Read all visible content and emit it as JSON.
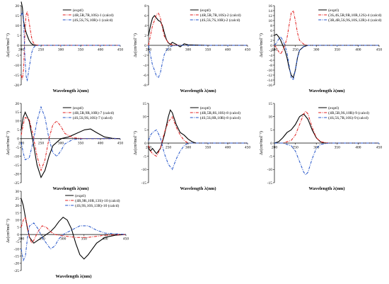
{
  "chart_data": [
    {
      "type": "line",
      "xlabel": "Wavelength λ(nm)",
      "ylabel": "Δε(cm²mol⁻¹)",
      "xlim": [
        200,
        450
      ],
      "ylim": [
        -20,
        20
      ],
      "xticks": [
        200,
        250,
        300,
        350,
        400,
        450
      ],
      "yticks": [
        -20,
        -15,
        -10,
        -5,
        0,
        5,
        10,
        15,
        20
      ],
      "legend": "top-right",
      "series": [
        {
          "name": "(exptl)",
          "color": "#000000",
          "dash": "solid",
          "x": [
            200,
            203,
            206,
            210,
            215,
            220,
            225,
            230,
            240,
            260,
            300,
            350,
            400,
            450
          ],
          "y": [
            22,
            19,
            12,
            8,
            5,
            2.5,
            1,
            0.3,
            0,
            0,
            0,
            0,
            0,
            0
          ]
        },
        {
          "name": "(4R,5R,7R,10S)-1 (calcd)",
          "color": "#e01b1b",
          "dash": "dashdot",
          "x": [
            200,
            203,
            206,
            209,
            212,
            215,
            218,
            222,
            226,
            230,
            235,
            245,
            260,
            300,
            350,
            400,
            450
          ],
          "y": [
            -15,
            -17,
            -12,
            4,
            15,
            17,
            14,
            9,
            4,
            1.5,
            0.3,
            0,
            0,
            0,
            0,
            0,
            0
          ]
        },
        {
          "name": "(4S,5S,7S,10R)-1 (calcd)",
          "color": "#2152c8",
          "dash": "dashdot",
          "x": [
            200,
            203,
            206,
            209,
            212,
            215,
            218,
            222,
            226,
            230,
            235,
            245,
            260,
            300,
            350,
            400,
            450
          ],
          "y": [
            15,
            17,
            12,
            -4,
            -15,
            -18,
            -14,
            -9,
            -4,
            -1.5,
            -0.3,
            0,
            0,
            0,
            0,
            0,
            0
          ]
        }
      ]
    },
    {
      "type": "line",
      "xlabel": "Wavelength λ(nm)",
      "ylabel": "Δε(cm²mol⁻¹)",
      "xlim": [
        200,
        450
      ],
      "ylim": [
        -8,
        8
      ],
      "xticks": [
        200,
        250,
        300,
        350,
        400,
        450
      ],
      "yticks": [
        -8,
        -6,
        -4,
        -2,
        0,
        2,
        4,
        6,
        8
      ],
      "legend": "top-right",
      "series": [
        {
          "name": "(exptl)",
          "color": "#000000",
          "dash": "solid",
          "x": [
            200,
            205,
            210,
            215,
            220,
            225,
            230,
            235,
            240,
            245,
            250,
            255,
            260,
            270,
            280,
            290,
            300,
            350,
            400,
            450
          ],
          "y": [
            2,
            4,
            5.5,
            6,
            5.5,
            5,
            4.8,
            4,
            2.5,
            1.2,
            0.5,
            0.2,
            0.6,
            0.2,
            -0.3,
            0.3,
            0.1,
            0,
            0,
            0
          ]
        },
        {
          "name": "(4R,5R,7R,10S)-2 (calcd)",
          "color": "#e01b1b",
          "dash": "dashdot",
          "x": [
            200,
            205,
            210,
            215,
            220,
            225,
            230,
            235,
            240,
            250,
            260,
            280,
            300,
            350,
            400,
            450
          ],
          "y": [
            0,
            2,
            4,
            5,
            6.2,
            6.5,
            5.5,
            3.5,
            1.8,
            0.5,
            0.1,
            0,
            0,
            0,
            0,
            0
          ]
        },
        {
          "name": "(4S,5S,7S,10R)-2 (calcd)",
          "color": "#2152c8",
          "dash": "dashdot",
          "x": [
            200,
            205,
            210,
            215,
            220,
            225,
            230,
            235,
            240,
            250,
            260,
            280,
            300,
            350,
            400,
            450
          ],
          "y": [
            0,
            -2,
            -4,
            -5,
            -6.2,
            -6.5,
            -5.5,
            -3.5,
            -1.8,
            -0.5,
            -0.1,
            0,
            0,
            0,
            0,
            0
          ]
        }
      ]
    },
    {
      "type": "line",
      "xlabel": "Wavelength λ(nm)",
      "ylabel": "Δε(cm²mol⁻¹)",
      "xlim": [
        200,
        450
      ],
      "ylim": [
        -16,
        16
      ],
      "xticks": [
        200,
        250,
        300,
        350,
        400,
        450
      ],
      "yticks": [
        -16,
        -14,
        -12,
        -10,
        -8,
        -6,
        -4,
        -2,
        0,
        2,
        4,
        6,
        8,
        10,
        12,
        14,
        16
      ],
      "legend": "top-right",
      "series": [
        {
          "name": "(exptl)",
          "color": "#000000",
          "dash": "solid",
          "x": [
            200,
            205,
            210,
            215,
            220,
            225,
            230,
            235,
            240,
            245,
            250,
            255,
            260,
            270,
            280,
            300,
            350,
            400,
            450
          ],
          "y": [
            4,
            4.5,
            3.5,
            2,
            0,
            -2,
            -5,
            -9,
            -12,
            -13,
            -10,
            -5,
            -2,
            -0.5,
            0,
            0,
            0,
            0,
            0
          ]
        },
        {
          "name": "(3S,4S,5R,9R,10R,12S)-4 (calcd)",
          "color": "#e01b1b",
          "dash": "dashdot",
          "x": [
            200,
            205,
            210,
            215,
            220,
            225,
            230,
            235,
            240,
            245,
            250,
            255,
            260,
            270,
            280,
            300,
            350,
            400,
            450
          ],
          "y": [
            0,
            -1,
            -2.5,
            -3.5,
            -2,
            0,
            3,
            8,
            13,
            14,
            10,
            5,
            2,
            0.5,
            0,
            0,
            0,
            0,
            0
          ]
        },
        {
          "name": "(3R,4R,5S,9S,10S,12R)-4 (calcd)",
          "color": "#2152c8",
          "dash": "dashdot",
          "x": [
            200,
            205,
            210,
            215,
            220,
            225,
            230,
            235,
            240,
            245,
            250,
            255,
            260,
            270,
            280,
            300,
            350,
            400,
            450
          ],
          "y": [
            0,
            1,
            2.5,
            3.5,
            2,
            0,
            -3,
            -8,
            -13,
            -14,
            -10,
            -5,
            -2,
            -0.5,
            0,
            0,
            0,
            0,
            0
          ]
        }
      ]
    },
    {
      "type": "line",
      "xlabel": "Wavelength λ(nm)",
      "ylabel": "Δε(cm²mol⁻¹)",
      "xlim": [
        200,
        450
      ],
      "ylim": [
        -25,
        20
      ],
      "xticks": [
        200,
        250,
        300,
        350,
        400,
        450
      ],
      "yticks": [
        -25,
        -20,
        -15,
        -10,
        -5,
        0,
        5,
        10,
        15,
        20
      ],
      "legend": "top-right",
      "series": [
        {
          "name": "(exptl)",
          "color": "#000000",
          "dash": "solid",
          "x": [
            200,
            205,
            210,
            220,
            230,
            240,
            250,
            260,
            270,
            280,
            300,
            320,
            340,
            360,
            375,
            390,
            410,
            430,
            450
          ],
          "y": [
            5,
            12,
            15,
            10,
            -2,
            -15,
            -22,
            -18,
            -10,
            -4,
            0,
            1,
            3,
            5,
            5.5,
            3.5,
            1,
            0.2,
            0
          ]
        },
        {
          "name": "(4R,5R,9R,10R)-7 (calcd)",
          "color": "#e01b1b",
          "dash": "dashdot",
          "x": [
            200,
            205,
            210,
            220,
            230,
            240,
            250,
            260,
            270,
            280,
            290,
            300,
            310,
            330,
            360,
            400,
            450
          ],
          "y": [
            2,
            8,
            12,
            11,
            2,
            -10,
            -18,
            -12,
            0,
            8,
            10,
            7,
            3,
            0.5,
            0,
            0,
            0
          ]
        },
        {
          "name": "(4S,5S,9S,10S)-7 (calcd)",
          "color": "#2152c8",
          "dash": "dashdot",
          "x": [
            200,
            205,
            210,
            220,
            230,
            240,
            250,
            260,
            270,
            280,
            290,
            300,
            310,
            330,
            360,
            400,
            450
          ],
          "y": [
            -2,
            -8,
            -12,
            -11,
            -2,
            10,
            18,
            12,
            0,
            -8,
            -10,
            -7,
            -3,
            -0.5,
            0,
            0,
            0
          ]
        }
      ]
    },
    {
      "type": "line",
      "xlabel": "Wavelength λ(nm)",
      "ylabel": "Δε(cm²mol⁻¹)",
      "xlim": [
        200,
        450
      ],
      "ylim": [
        -15,
        15
      ],
      "xticks": [
        200,
        250,
        300,
        350,
        400,
        450
      ],
      "yticks": [
        -15,
        -10,
        -5,
        0,
        5,
        10,
        15
      ],
      "legend": "top-right",
      "series": [
        {
          "name": "(exptl)",
          "color": "#000000",
          "dash": "solid",
          "x": [
            200,
            205,
            210,
            220,
            230,
            240,
            250,
            255,
            260,
            270,
            280,
            290,
            300,
            310,
            320,
            340,
            370,
            400,
            450
          ],
          "y": [
            -2,
            -3,
            -2,
            -4,
            -2,
            3,
            10,
            12.5,
            11.5,
            7,
            4,
            3,
            1.5,
            0.5,
            0,
            0,
            0,
            0,
            0
          ]
        },
        {
          "name": "(4R,5R,8S,10S)-8 (calcd)",
          "color": "#e01b1b",
          "dash": "dashdot",
          "x": [
            200,
            205,
            210,
            220,
            230,
            240,
            250,
            260,
            270,
            280,
            290,
            300,
            320,
            350,
            400,
            450
          ],
          "y": [
            -1,
            -3,
            -4,
            -5,
            -2,
            4,
            8,
            10,
            6,
            3,
            1,
            0,
            0,
            0,
            0,
            0
          ]
        },
        {
          "name": "(4S,5S,8R,10R)-8 (calcd)",
          "color": "#2152c8",
          "dash": "dashdot",
          "x": [
            200,
            205,
            210,
            220,
            230,
            240,
            250,
            260,
            270,
            280,
            290,
            300,
            320,
            350,
            400,
            450
          ],
          "y": [
            1,
            3,
            4,
            5,
            2,
            -4,
            -8,
            -10,
            -6,
            -3,
            -1,
            0,
            0,
            0,
            0,
            0
          ]
        }
      ]
    },
    {
      "type": "line",
      "xlabel": "Wavelength λ(nm)",
      "ylabel": "Δε(cm²mol⁻¹)",
      "xlim": [
        200,
        450
      ],
      "ylim": [
        -15,
        15
      ],
      "xticks": [
        200,
        250,
        300,
        350,
        400,
        450
      ],
      "yticks": [
        -15,
        -10,
        -5,
        0,
        5,
        10,
        15
      ],
      "legend": "top-right",
      "series": [
        {
          "name": "(exptl)",
          "color": "#000000",
          "dash": "solid",
          "x": [
            200,
            210,
            220,
            230,
            240,
            250,
            260,
            270,
            280,
            290,
            300,
            310,
            320,
            340,
            360,
            400,
            450
          ],
          "y": [
            0,
            0.5,
            2,
            4,
            5,
            7,
            10,
            11,
            9,
            5,
            2,
            0.5,
            0,
            0,
            0,
            0,
            0
          ]
        },
        {
          "name": "(4R,5R,9S,10R)-9 (calcd)",
          "color": "#e01b1b",
          "dash": "dashdot",
          "x": [
            200,
            210,
            220,
            230,
            240,
            250,
            260,
            270,
            275,
            280,
            290,
            300,
            310,
            330,
            360,
            400,
            450
          ],
          "y": [
            0,
            0,
            0,
            0.5,
            1,
            3,
            7,
            11,
            12,
            11,
            6,
            2,
            0.5,
            0,
            0,
            0,
            0
          ]
        },
        {
          "name": "(4S,5S,7R,10S)-9 (calcd)",
          "color": "#2152c8",
          "dash": "dashdot",
          "x": [
            200,
            210,
            220,
            230,
            240,
            250,
            260,
            270,
            275,
            280,
            290,
            300,
            310,
            330,
            360,
            400,
            450
          ],
          "y": [
            0,
            0,
            0,
            -0.5,
            -1,
            -3,
            -7,
            -11,
            -12,
            -11,
            -6,
            -2,
            -0.5,
            0,
            0,
            0,
            0
          ]
        }
      ]
    },
    {
      "type": "line",
      "xlabel": "Wavelength λ(nm)",
      "ylabel": "Δε(cm²mol⁻¹)",
      "xlim": [
        200,
        450
      ],
      "ylim": [
        -25,
        30
      ],
      "xticks": [
        200,
        250,
        300,
        350,
        400,
        450
      ],
      "yticks": [
        -25,
        -20,
        -15,
        -10,
        -5,
        0,
        5,
        10,
        15,
        20,
        25,
        30
      ],
      "legend": "top-right",
      "series": [
        {
          "name": "(exptl)",
          "color": "#000000",
          "dash": "solid",
          "x": [
            200,
            205,
            210,
            215,
            220,
            230,
            240,
            250,
            260,
            270,
            280,
            290,
            300,
            310,
            320,
            330,
            340,
            350,
            360,
            380,
            400,
            425,
            450
          ],
          "y": [
            25,
            20,
            12,
            4,
            -2,
            -6,
            -4,
            -2,
            0,
            2,
            5,
            9,
            12,
            10,
            4,
            -6,
            -14,
            -17,
            -14,
            -6,
            -2,
            -0.5,
            0
          ]
        },
        {
          "name": "(4R,9R,10R,13S)-10 (calcd)",
          "color": "#e01b1b",
          "dash": "dashdot",
          "x": [
            200,
            205,
            210,
            215,
            220,
            225,
            230,
            240,
            250,
            260,
            270,
            280,
            300,
            330,
            360,
            400,
            450
          ],
          "y": [
            5,
            10,
            12,
            5,
            -2,
            -6,
            -4,
            2,
            6,
            5,
            2,
            0,
            -1,
            -2,
            -2,
            -0.5,
            0
          ]
        },
        {
          "name": "(4S,9S,10S,13R)-10 (calcd)",
          "color": "#2152c8",
          "dash": "dashdot",
          "x": [
            200,
            205,
            210,
            215,
            220,
            230,
            240,
            250,
            260,
            270,
            280,
            290,
            300,
            320,
            340,
            360,
            380,
            400,
            450
          ],
          "y": [
            -10,
            -18,
            -15,
            -2,
            6,
            8,
            4,
            -2,
            -6,
            -10,
            -8,
            -3,
            0,
            3,
            6,
            6,
            3,
            1,
            0
          ]
        }
      ]
    }
  ]
}
